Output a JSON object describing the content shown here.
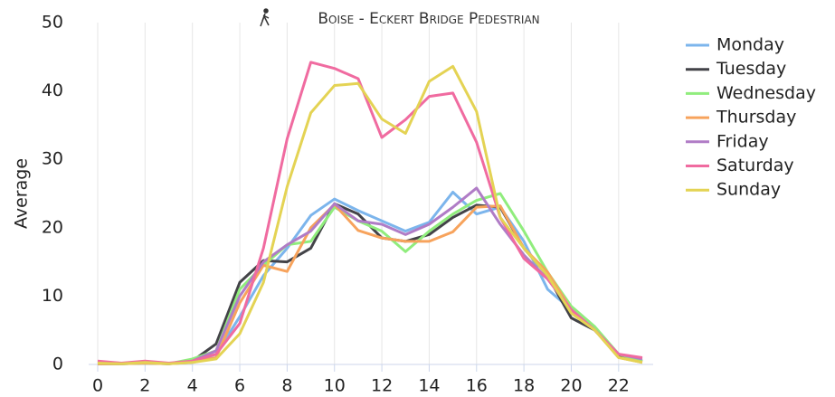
{
  "chart_data": {
    "type": "line",
    "title": "Boise - Eckert Bridge Pedestrian",
    "y_label": "Average",
    "x": [
      0,
      1,
      2,
      3,
      4,
      5,
      6,
      7,
      8,
      9,
      10,
      11,
      12,
      13,
      14,
      15,
      16,
      17,
      18,
      19,
      20,
      21,
      22,
      23
    ],
    "xlim": [
      0,
      23
    ],
    "xticks": [
      0,
      2,
      4,
      6,
      8,
      10,
      12,
      14,
      16,
      18,
      20,
      22
    ],
    "ylim": [
      0,
      50
    ],
    "yticks": [
      0,
      10,
      20,
      30,
      40,
      50
    ],
    "grid": "x",
    "legend": "right",
    "series": [
      {
        "name": "Monday",
        "color": "#7cb5ec",
        "values": [
          0.2,
          0.1,
          0.3,
          0.1,
          0.3,
          1.5,
          7,
          13,
          17,
          21.8,
          24.2,
          22.5,
          21,
          19.5,
          20.8,
          25.2,
          22,
          23,
          18,
          11,
          8,
          5,
          1.2,
          0.5
        ]
      },
      {
        "name": "Tuesday",
        "color": "#434348",
        "values": [
          0.1,
          0.1,
          0.2,
          0.1,
          0.5,
          3,
          12,
          15.2,
          15,
          17,
          23.5,
          22,
          18.5,
          18,
          19,
          21.5,
          23.3,
          23,
          17,
          13,
          6.8,
          5,
          1.2,
          0.5
        ]
      },
      {
        "name": "Wednesday",
        "color": "#90ed7d",
        "values": [
          0.2,
          0.1,
          0.2,
          0.1,
          0.8,
          2,
          11,
          14.5,
          17.5,
          18,
          23,
          21,
          19.5,
          16.5,
          19.5,
          22,
          24,
          25,
          19.5,
          13.5,
          8.5,
          5.5,
          1.5,
          0.5
        ]
      },
      {
        "name": "Thursday",
        "color": "#f7a35c",
        "values": [
          0.1,
          0.1,
          0.2,
          0.1,
          0.3,
          1,
          9,
          14.5,
          13.6,
          20,
          23.4,
          19.6,
          18.5,
          18,
          18,
          19.4,
          23,
          23.2,
          17,
          13.5,
          8,
          5,
          1,
          0.3
        ]
      },
      {
        "name": "Friday",
        "color": "#b07cc6",
        "values": [
          0.3,
          0.1,
          0.4,
          0.1,
          0.5,
          2,
          10,
          15,
          17.5,
          19.5,
          23.5,
          21,
          20.5,
          19,
          20.5,
          23,
          25.8,
          20.5,
          16,
          12.5,
          8,
          5,
          1.5,
          0.8
        ]
      },
      {
        "name": "Saturday",
        "color": "#f06ba0",
        "values": [
          0.5,
          0.2,
          0.5,
          0.2,
          0.5,
          1.5,
          6,
          17,
          33,
          44.2,
          43.3,
          41.8,
          33.2,
          35.8,
          39.2,
          39.7,
          32.5,
          21.5,
          15.5,
          12.5,
          8,
          5,
          1.5,
          1
        ]
      },
      {
        "name": "Sunday",
        "color": "#e4d354",
        "values": [
          0.2,
          0.1,
          0.3,
          0.1,
          0.3,
          0.8,
          4.5,
          12,
          26,
          36.8,
          40.8,
          41.1,
          35.9,
          33.8,
          41.4,
          43.6,
          37,
          21.5,
          17,
          13,
          7.5,
          5,
          1,
          0.3
        ]
      }
    ]
  }
}
